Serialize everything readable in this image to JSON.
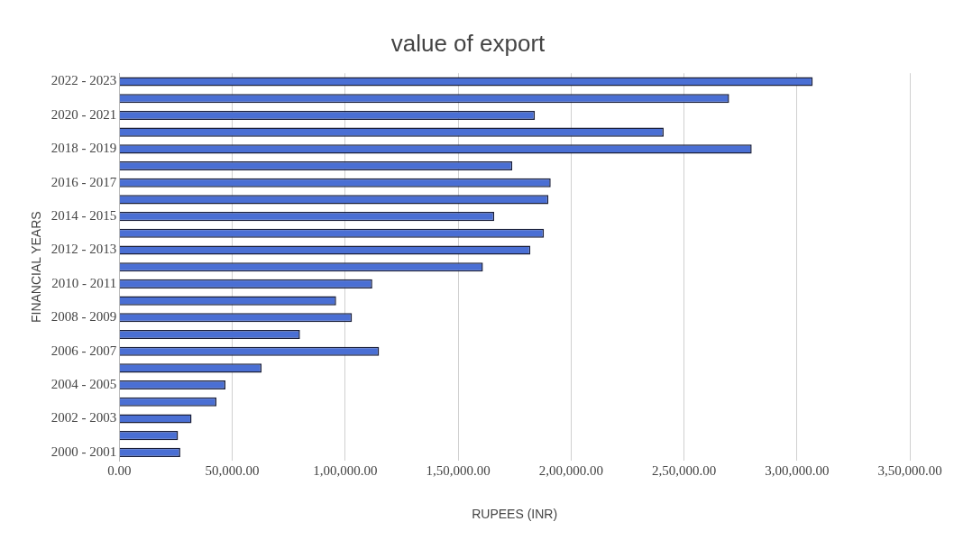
{
  "chart_data": {
    "type": "bar",
    "orientation": "horizontal",
    "title": "value of export",
    "xlabel": "RUPEES (INR)",
    "ylabel": "FINANCIAL YEARS",
    "categories": [
      "2022 - 2023",
      null,
      "2020 - 2021",
      null,
      "2018 - 2019",
      null,
      "2016 - 2017",
      null,
      "2014 - 2015",
      null,
      "2012 - 2013",
      null,
      "2010 - 2011",
      null,
      "2008 - 2009",
      null,
      "2006 - 2007",
      null,
      "2004 - 2005",
      null,
      "2002 - 2003",
      null,
      "2000 - 2001"
    ],
    "values": [
      307000,
      270000,
      184000,
      241000,
      280000,
      174000,
      191000,
      190000,
      166000,
      188000,
      182000,
      161000,
      112000,
      96000,
      103000,
      80000,
      115000,
      63000,
      47000,
      43000,
      32000,
      26000,
      27000
    ],
    "color": "#4a6fd4",
    "xlim": [
      0,
      350000
    ],
    "xticks": [
      {
        "value": 0,
        "label": "0.00"
      },
      {
        "value": 50000,
        "label": "50,000.00"
      },
      {
        "value": 100000,
        "label": "1,00,000.00"
      },
      {
        "value": 150000,
        "label": "1,50,000.00"
      },
      {
        "value": 200000,
        "label": "2,00,000.00"
      },
      {
        "value": 250000,
        "label": "2,50,000.00"
      },
      {
        "value": 300000,
        "label": "3,00,000.00"
      },
      {
        "value": 350000,
        "label": "3,50,000.00"
      }
    ],
    "grid": "x",
    "legend": false
  }
}
